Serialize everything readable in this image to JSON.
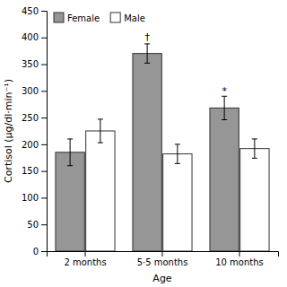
{
  "chart_data": {
    "type": "bar",
    "categories": [
      "2 months",
      "5·5 months",
      "10 months"
    ],
    "series": [
      {
        "name": "Female",
        "color": "#969696",
        "values": [
          185,
          370,
          268
        ],
        "errors": [
          25,
          18,
          22
        ]
      },
      {
        "name": "Male",
        "color": "#ffffff",
        "values": [
          225,
          182,
          192
        ],
        "errors": [
          22,
          18,
          18
        ]
      }
    ],
    "ylim": [
      0,
      450
    ],
    "yticks": [
      0,
      50,
      100,
      150,
      200,
      250,
      300,
      350,
      400,
      450
    ],
    "ylabel": "Cortisol (µg/dl·min⁻¹)",
    "xlabel": "Age",
    "legend": "upper left",
    "grid": false,
    "annotations": [
      {
        "text": "†",
        "x": 1,
        "y": 393,
        "series": 0
      },
      {
        "text": "*",
        "x": 2,
        "y": 293,
        "series": 0
      }
    ]
  }
}
